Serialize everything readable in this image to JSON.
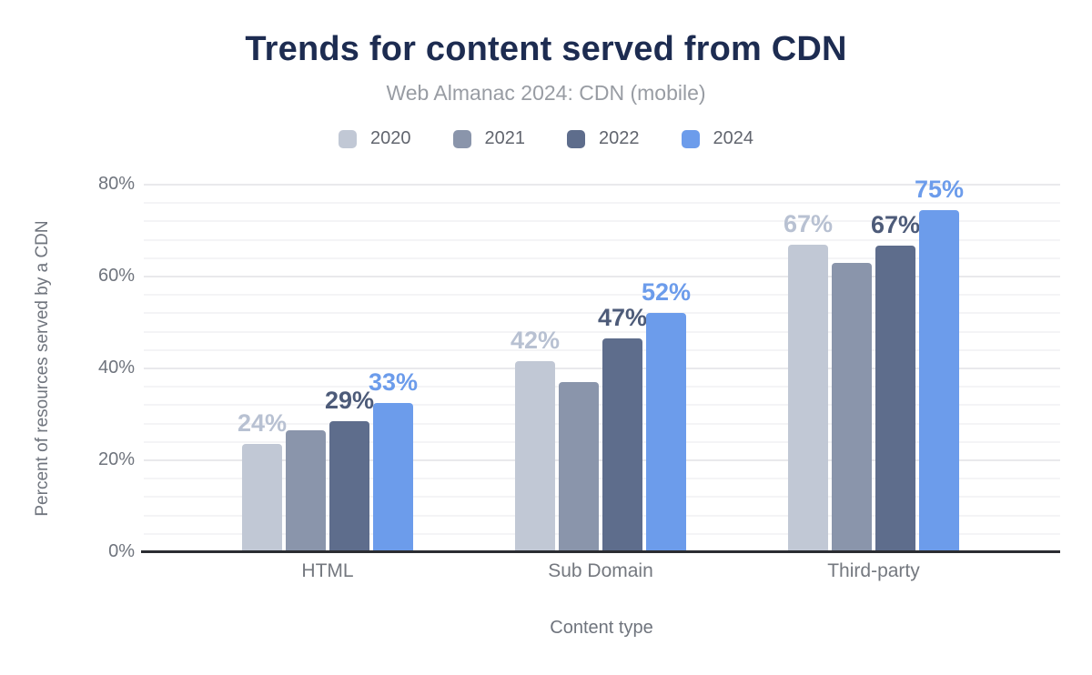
{
  "chart_data": {
    "type": "bar",
    "title": "Trends for content served from CDN",
    "subtitle": "Web Almanac 2024: CDN (mobile)",
    "xlabel": "Content type",
    "ylabel": "Percent of resources served by a CDN",
    "categories": [
      "HTML",
      "Sub Domain",
      "Third-party"
    ],
    "series": [
      {
        "name": "2020",
        "color": "#c1c8d5",
        "label_color": "#b8c1d2",
        "values": [
          23.5,
          41.5,
          67.0
        ],
        "labels": [
          "24%",
          "42%",
          "67%"
        ]
      },
      {
        "name": "2021",
        "color": "#8a95ab",
        "label_color": null,
        "values": [
          26.5,
          37.0,
          63.0
        ],
        "labels": [
          null,
          null,
          null
        ]
      },
      {
        "name": "2022",
        "color": "#5e6d8c",
        "label_color": "#4d5b79",
        "values": [
          28.5,
          46.5,
          66.8
        ],
        "labels": [
          "29%",
          "47%",
          "67%"
        ]
      },
      {
        "name": "2024",
        "color": "#6c9ceb",
        "label_color": "#6c9ceb",
        "values": [
          32.5,
          52.0,
          74.5
        ],
        "labels": [
          "33%",
          "52%",
          "75%"
        ]
      }
    ],
    "y_ticks": [
      {
        "value": 0,
        "label": "0%"
      },
      {
        "value": 20,
        "label": "20%"
      },
      {
        "value": 40,
        "label": "40%"
      },
      {
        "value": 60,
        "label": "60%"
      },
      {
        "value": 80,
        "label": "80%"
      }
    ],
    "ylim": [
      0,
      80
    ],
    "grid": {
      "minor_step": 4,
      "major_step": 20,
      "shown": true
    },
    "legend_position": "top",
    "colors": {
      "title": "#1d2c51",
      "subtitle": "#989ca3",
      "axis_text": "#6f747d",
      "axis_line": "#2b2d32",
      "background": "#ffffff"
    }
  }
}
